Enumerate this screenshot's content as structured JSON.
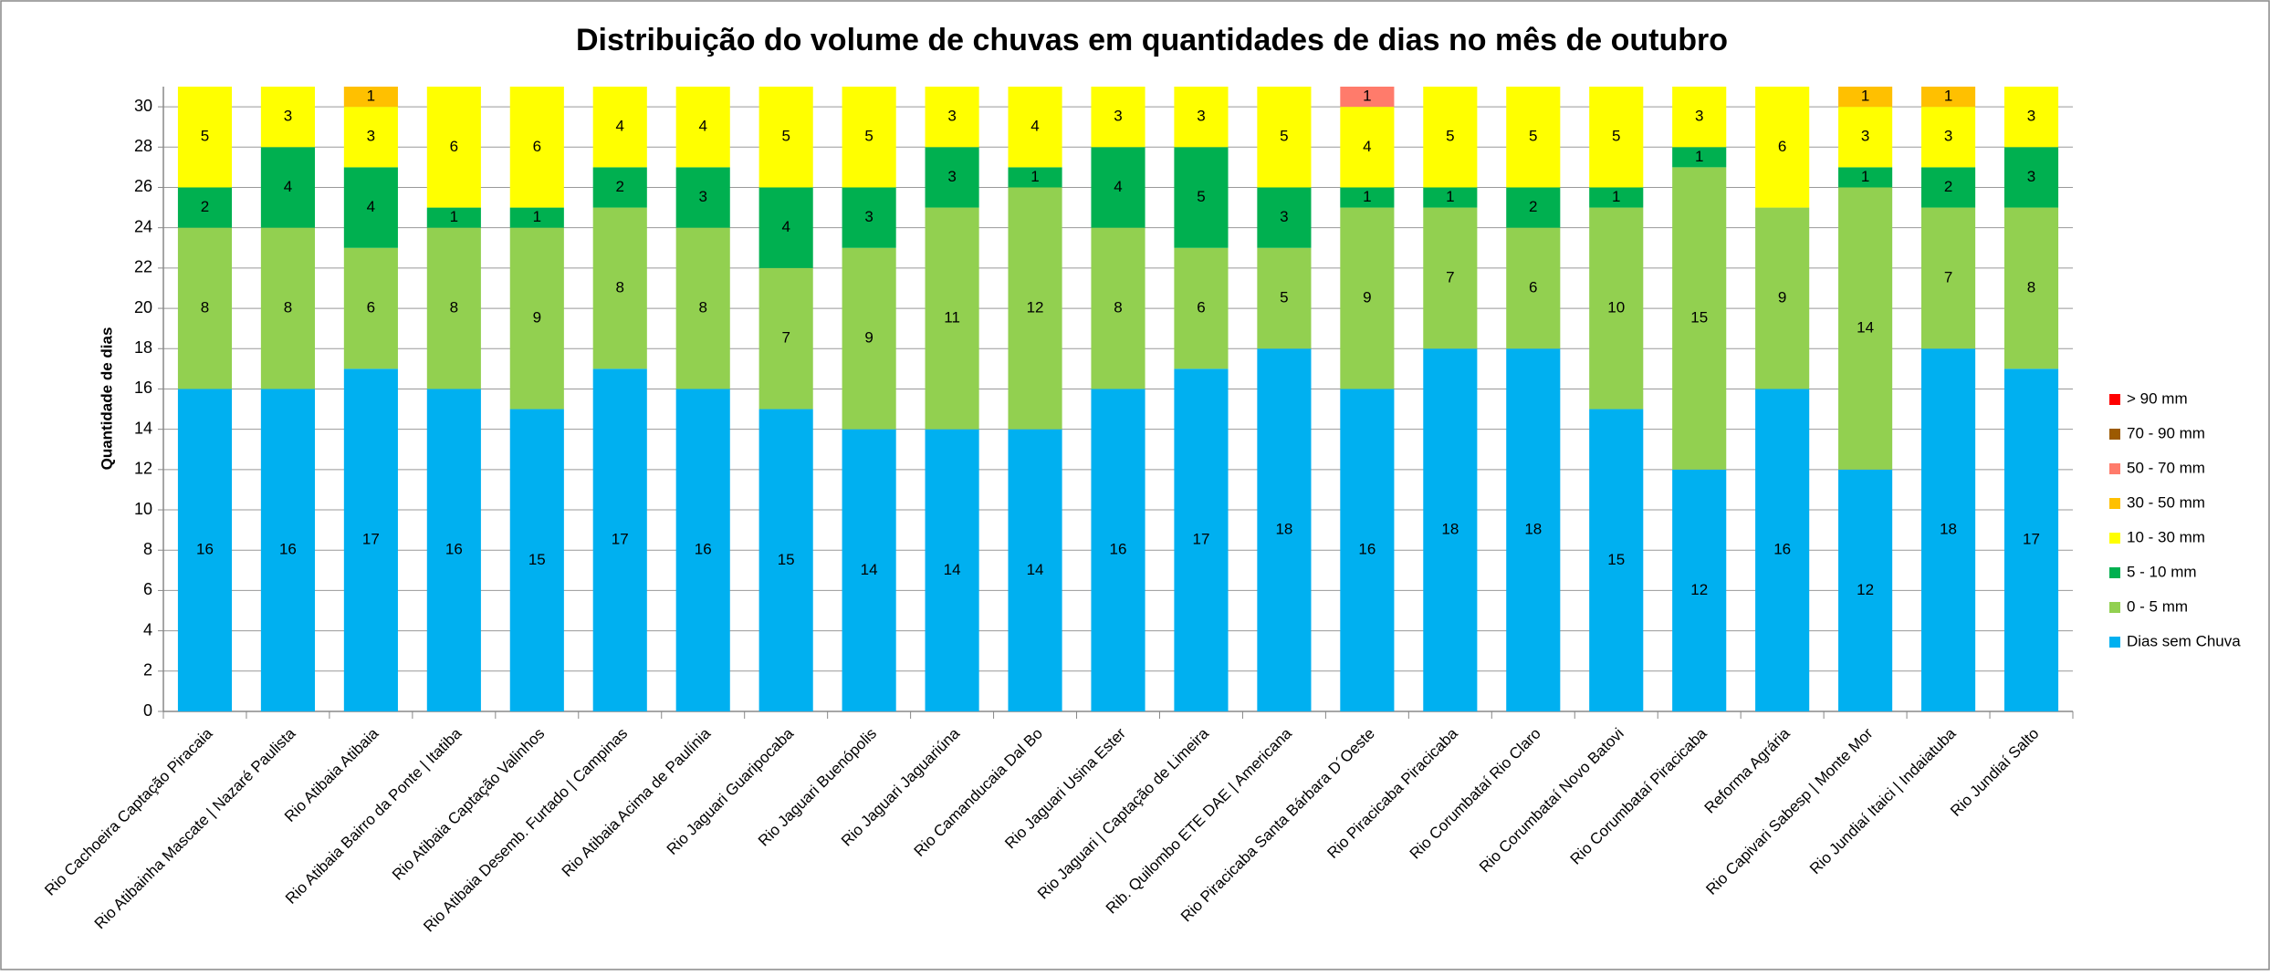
{
  "chart_data": {
    "type": "stacked_bar",
    "title": "Distribuição do volume de chuvas em quantidades de dias no mês de outubro",
    "y_label": "Quantidade  de dias",
    "categories": [
      "Rio Cachoeira Captação Piracaia",
      "Rio Atibainha Mascate | Nazaré Paulista",
      "Rio Atibaia Atibaia",
      "Rio Atibaia Bairro da Ponte | Itatiba",
      "Rio Atibaia Captação Valinhos",
      "Rio Atibaia Desemb. Furtado | Campinas",
      "Rio Atibaia Acima de Paulínia",
      "Rio Jaguari Guaripocaba",
      "Rio Jaguari Buenópolis",
      "Rio Jaguari Jaguariúna",
      "Rio Camanducaia Dal Bo",
      "Rio Jaguari Usina Ester",
      "Rio Jaguari  | Captação de Limeira",
      "Rib. Quilombo ETE DAE | Americana",
      "Rio Piracicaba Santa Bárbara D´Oeste",
      "Rio Piracicaba Piracicaba",
      "Rio Corumbataí  Rio Claro",
      "Rio Corumbataí  Novo Batovi",
      "Rio Corumbataí  Piracicaba",
      "Reforma Agrária",
      "Rio Capivari Sabesp | Monte Mor",
      "Rio Jundiaí Itaici | Indaiatuba",
      "Rio Jundiaí Salto"
    ],
    "series": [
      {
        "name": "Dias sem Chuva",
        "color": "#00b0f0",
        "values": [
          16,
          16,
          17,
          16,
          15,
          17,
          16,
          15,
          14,
          14,
          14,
          16,
          17,
          18,
          16,
          18,
          18,
          15,
          12,
          16,
          12,
          18,
          17
        ]
      },
      {
        "name": "0 - 5 mm",
        "color": "#92d050",
        "values": [
          8,
          8,
          6,
          8,
          9,
          8,
          8,
          7,
          9,
          11,
          12,
          8,
          6,
          5,
          9,
          7,
          6,
          10,
          15,
          9,
          14,
          7,
          8
        ]
      },
      {
        "name": "5 - 10 mm",
        "color": "#00b050",
        "values": [
          2,
          4,
          4,
          1,
          1,
          2,
          3,
          4,
          3,
          3,
          1,
          4,
          5,
          3,
          1,
          1,
          2,
          1,
          1,
          0,
          1,
          2,
          3
        ]
      },
      {
        "name": "10 - 30 mm",
        "color": "#ffff00",
        "values": [
          5,
          3,
          3,
          6,
          6,
          4,
          4,
          5,
          5,
          3,
          4,
          3,
          3,
          5,
          4,
          5,
          5,
          5,
          3,
          6,
          3,
          3,
          3
        ]
      },
      {
        "name": "30 - 50 mm",
        "color": "#ffc000",
        "values": [
          0,
          0,
          1,
          0,
          0,
          0,
          0,
          0,
          0,
          0,
          0,
          0,
          0,
          0,
          0,
          0,
          0,
          0,
          0,
          0,
          1,
          1,
          0
        ]
      },
      {
        "name": "50 - 70 mm",
        "color": "#ff7b6b",
        "values": [
          0,
          0,
          0,
          0,
          0,
          0,
          0,
          0,
          0,
          0,
          0,
          0,
          0,
          0,
          1,
          0,
          0,
          0,
          0,
          0,
          0,
          0,
          0
        ]
      },
      {
        "name": "70 - 90 mm",
        "color": "#9c5a00",
        "values": [
          0,
          0,
          0,
          0,
          0,
          0,
          0,
          0,
          0,
          0,
          0,
          0,
          0,
          0,
          0,
          0,
          0,
          0,
          0,
          0,
          0,
          0,
          0
        ]
      },
      {
        "name": "> 90 mm",
        "color": "#ff0000",
        "values": [
          0,
          0,
          0,
          0,
          0,
          0,
          0,
          0,
          0,
          0,
          0,
          0,
          0,
          0,
          0,
          0,
          0,
          0,
          0,
          0,
          0,
          0,
          0
        ]
      }
    ],
    "ylim": [
      0,
      31
    ],
    "yticks": [
      0,
      2,
      4,
      6,
      8,
      10,
      12,
      14,
      16,
      18,
      20,
      22,
      24,
      26,
      28,
      30
    ],
    "grid": true,
    "legend": "right"
  }
}
